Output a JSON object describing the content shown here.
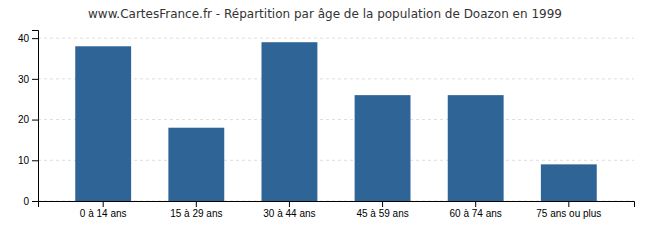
{
  "chart_data": {
    "type": "bar",
    "title": "www.CartesFrance.fr - Répartition par âge de la population de Doazon en 1999",
    "categories": [
      "0 à 14 ans",
      "15 à 29 ans",
      "30 à 44 ans",
      "45 à 59 ans",
      "60 à 74 ans",
      "75 ans ou plus"
    ],
    "values": [
      38,
      18,
      39,
      26,
      26,
      9
    ],
    "color": "#2e6496",
    "ylim": [
      0,
      42
    ],
    "yticks": [
      0,
      10,
      20,
      30,
      40
    ],
    "grid": true
  }
}
